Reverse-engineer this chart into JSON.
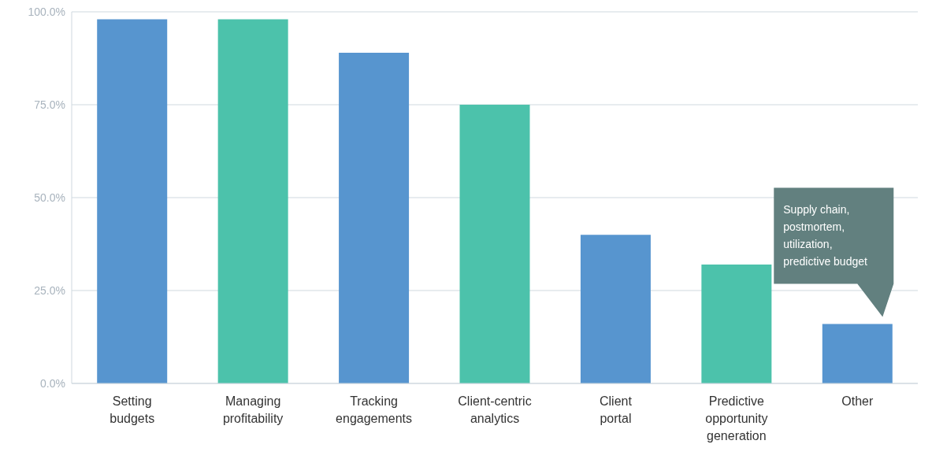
{
  "chart_data": {
    "type": "bar",
    "categories": [
      "Setting budgets",
      "Managing profitability",
      "Tracking engagements",
      "Client-centric analytics",
      "Client portal",
      "Predictive opportunity generation",
      "Other"
    ],
    "values": [
      98,
      98,
      89,
      75,
      40,
      32,
      16
    ],
    "colors": [
      "#5795cf",
      "#4cc2ab",
      "#5795cf",
      "#4cc2ab",
      "#5795cf",
      "#4cc2ab",
      "#5795cf"
    ],
    "ylim": [
      0,
      100
    ],
    "yticks": [
      {
        "value": 0,
        "label": "0.0%"
      },
      {
        "value": 25,
        "label": "25.0%"
      },
      {
        "value": 50,
        "label": "50.0%"
      },
      {
        "value": 75,
        "label": "75.0%"
      },
      {
        "value": 100,
        "label": "100.0%"
      }
    ],
    "grid": "y",
    "annotations": [
      "Supply chain, postmortem, utilization, predictive budget"
    ]
  }
}
